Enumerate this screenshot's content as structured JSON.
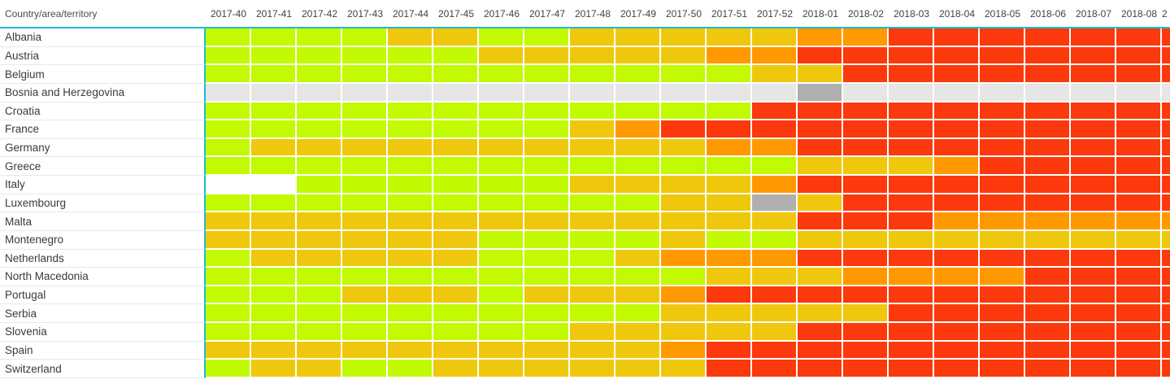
{
  "header": {
    "row_label_column_title": "Country/area/territory",
    "columns": [
      "2017-40",
      "2017-41",
      "2017-42",
      "2017-43",
      "2017-44",
      "2017-45",
      "2017-46",
      "2017-47",
      "2017-48",
      "2017-49",
      "2017-50",
      "2017-51",
      "2017-52",
      "2018-01",
      "2018-02",
      "2018-03",
      "2018-04",
      "2018-05",
      "2018-06",
      "2018-07",
      "2018-08"
    ],
    "partial_column_label": "2"
  },
  "colors": {
    "green": "#C1FA01",
    "amber": "#EFC80D",
    "orange": "#FF9900",
    "red": "#FB390C",
    "light_gray": "#E6E6E6",
    "dark_gray": "#AFAFAF",
    "white": "#FFFFFF",
    "divider_teal": "#1CBCCF",
    "row_separator": "#DCEDF5"
  },
  "grid": {
    "color_codes": {
      "G": "green",
      "Y": "amber",
      "O": "orange",
      "R": "red",
      "L": "light_gray",
      "D": "dark_gray",
      "W": "white"
    },
    "rows": [
      {
        "country": "Albania",
        "cells": [
          "G",
          "G",
          "G",
          "G",
          "Y",
          "Y",
          "G",
          "G",
          "Y",
          "Y",
          "Y",
          "Y",
          "Y",
          "O",
          "O",
          "R",
          "R",
          "R",
          "R",
          "R",
          "R"
        ],
        "partial_cell": "R"
      },
      {
        "country": "Austria",
        "cells": [
          "G",
          "G",
          "G",
          "G",
          "G",
          "G",
          "Y",
          "Y",
          "Y",
          "Y",
          "Y",
          "O",
          "O",
          "R",
          "R",
          "R",
          "R",
          "R",
          "R",
          "R",
          "R"
        ],
        "partial_cell": "R"
      },
      {
        "country": "Belgium",
        "cells": [
          "G",
          "G",
          "G",
          "G",
          "G",
          "G",
          "G",
          "G",
          "G",
          "G",
          "G",
          "G",
          "Y",
          "Y",
          "R",
          "R",
          "R",
          "R",
          "R",
          "R",
          "R"
        ],
        "partial_cell": "R"
      },
      {
        "country": "Bosnia and Herzegovina",
        "cells": [
          "L",
          "L",
          "L",
          "L",
          "L",
          "L",
          "L",
          "L",
          "L",
          "L",
          "L",
          "L",
          "L",
          "D",
          "L",
          "L",
          "L",
          "L",
          "L",
          "L",
          "L"
        ],
        "partial_cell": "L"
      },
      {
        "country": "Croatia",
        "cells": [
          "G",
          "G",
          "G",
          "G",
          "G",
          "G",
          "G",
          "G",
          "G",
          "G",
          "G",
          "G",
          "R",
          "R",
          "R",
          "R",
          "R",
          "R",
          "R",
          "R",
          "R"
        ],
        "partial_cell": "R"
      },
      {
        "country": "France",
        "cells": [
          "G",
          "G",
          "G",
          "G",
          "G",
          "G",
          "G",
          "G",
          "Y",
          "O",
          "R",
          "R",
          "R",
          "R",
          "R",
          "R",
          "R",
          "R",
          "R",
          "R",
          "R"
        ],
        "partial_cell": "R"
      },
      {
        "country": "Germany",
        "cells": [
          "G",
          "Y",
          "Y",
          "Y",
          "Y",
          "Y",
          "Y",
          "Y",
          "Y",
          "Y",
          "Y",
          "O",
          "O",
          "R",
          "R",
          "R",
          "R",
          "R",
          "R",
          "R",
          "R"
        ],
        "partial_cell": "R"
      },
      {
        "country": "Greece",
        "cells": [
          "G",
          "G",
          "G",
          "G",
          "G",
          "G",
          "G",
          "G",
          "G",
          "G",
          "G",
          "G",
          "G",
          "Y",
          "Y",
          "Y",
          "O",
          "R",
          "R",
          "R",
          "R"
        ],
        "partial_cell": "R"
      },
      {
        "country": "Italy",
        "cells": [
          "W",
          "W",
          "G",
          "G",
          "G",
          "G",
          "G",
          "G",
          "Y",
          "Y",
          "Y",
          "Y",
          "O",
          "R",
          "R",
          "R",
          "R",
          "R",
          "R",
          "R",
          "R"
        ],
        "partial_cell": "R"
      },
      {
        "country": "Luxembourg",
        "cells": [
          "G",
          "G",
          "G",
          "G",
          "G",
          "G",
          "G",
          "G",
          "G",
          "G",
          "Y",
          "Y",
          "D",
          "Y",
          "R",
          "R",
          "R",
          "R",
          "R",
          "R",
          "R"
        ],
        "partial_cell": "R"
      },
      {
        "country": "Malta",
        "cells": [
          "Y",
          "Y",
          "Y",
          "Y",
          "Y",
          "Y",
          "Y",
          "Y",
          "Y",
          "Y",
          "Y",
          "Y",
          "Y",
          "R",
          "R",
          "R",
          "O",
          "O",
          "O",
          "O",
          "O"
        ],
        "partial_cell": "O"
      },
      {
        "country": "Montenegro",
        "cells": [
          "Y",
          "Y",
          "Y",
          "Y",
          "Y",
          "Y",
          "G",
          "G",
          "G",
          "G",
          "Y",
          "G",
          "G",
          "Y",
          "Y",
          "Y",
          "Y",
          "Y",
          "Y",
          "Y",
          "Y"
        ],
        "partial_cell": "Y"
      },
      {
        "country": "Netherlands",
        "cells": [
          "G",
          "Y",
          "Y",
          "Y",
          "Y",
          "Y",
          "G",
          "G",
          "G",
          "Y",
          "O",
          "O",
          "O",
          "R",
          "R",
          "R",
          "R",
          "R",
          "R",
          "R",
          "R"
        ],
        "partial_cell": "R"
      },
      {
        "country": "North Macedonia",
        "cells": [
          "G",
          "G",
          "G",
          "G",
          "G",
          "G",
          "G",
          "G",
          "G",
          "G",
          "G",
          "Y",
          "Y",
          "Y",
          "O",
          "O",
          "O",
          "O",
          "R",
          "R",
          "R"
        ],
        "partial_cell": "R"
      },
      {
        "country": "Portugal",
        "cells": [
          "G",
          "G",
          "G",
          "Y",
          "Y",
          "Y",
          "G",
          "Y",
          "Y",
          "Y",
          "O",
          "R",
          "R",
          "R",
          "R",
          "R",
          "R",
          "R",
          "R",
          "R",
          "R"
        ],
        "partial_cell": "R"
      },
      {
        "country": "Serbia",
        "cells": [
          "G",
          "G",
          "G",
          "G",
          "G",
          "G",
          "G",
          "G",
          "G",
          "G",
          "Y",
          "Y",
          "Y",
          "Y",
          "Y",
          "R",
          "R",
          "R",
          "R",
          "R",
          "R"
        ],
        "partial_cell": "R"
      },
      {
        "country": "Slovenia",
        "cells": [
          "G",
          "G",
          "G",
          "G",
          "G",
          "G",
          "G",
          "G",
          "Y",
          "Y",
          "Y",
          "Y",
          "Y",
          "R",
          "R",
          "R",
          "R",
          "R",
          "R",
          "R",
          "R"
        ],
        "partial_cell": "R"
      },
      {
        "country": "Spain",
        "cells": [
          "Y",
          "Y",
          "Y",
          "Y",
          "Y",
          "Y",
          "Y",
          "Y",
          "Y",
          "Y",
          "O",
          "R",
          "R",
          "R",
          "R",
          "R",
          "R",
          "R",
          "R",
          "R",
          "R"
        ],
        "partial_cell": "R"
      },
      {
        "country": "Switzerland",
        "cells": [
          "G",
          "Y",
          "Y",
          "G",
          "G",
          "Y",
          "Y",
          "Y",
          "Y",
          "Y",
          "Y",
          "R",
          "R",
          "R",
          "R",
          "R",
          "R",
          "R",
          "R",
          "R",
          "R"
        ],
        "partial_cell": "R"
      }
    ]
  }
}
